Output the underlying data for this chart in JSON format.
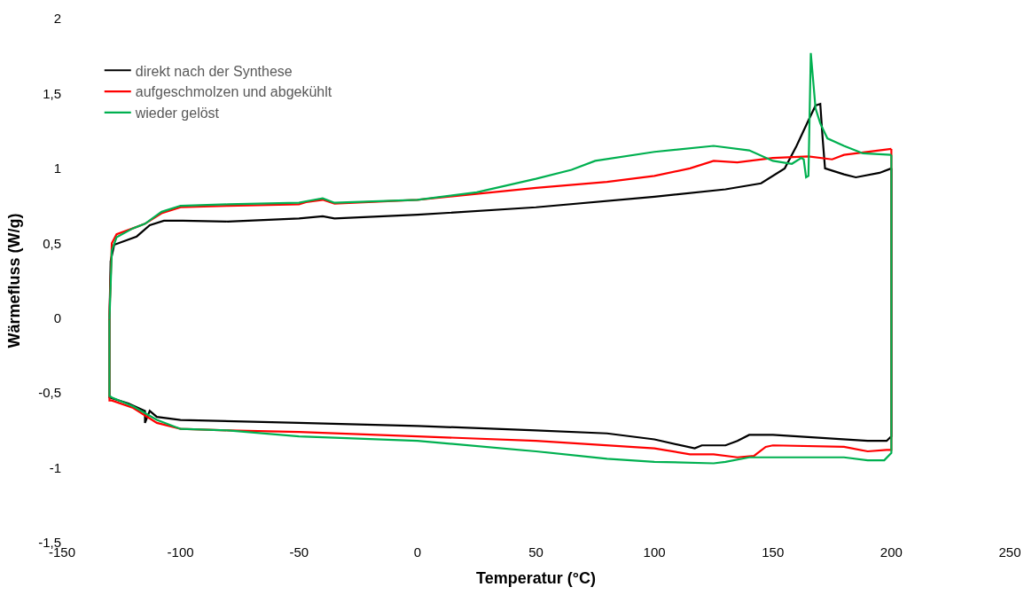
{
  "chart_data": {
    "type": "line",
    "xlabel": "Temperatur (°C)",
    "ylabel": "Wärmefluss (W/g)",
    "xlim": [
      -150,
      250
    ],
    "xticks": [
      -150,
      -100,
      -50,
      0,
      50,
      100,
      150,
      200,
      250
    ],
    "ylim": [
      -1.5,
      2
    ],
    "yticks": [
      {
        "value": -1.5,
        "label": "-1,5"
      },
      -1,
      {
        "value": -0.5,
        "label": "-0,5"
      },
      0,
      {
        "value": 0.5,
        "label": "0,5"
      },
      1,
      {
        "value": 1.5,
        "label": "1,5"
      },
      2
    ],
    "legend": "top left",
    "line_style": "solid",
    "marker": "none",
    "series": [
      {
        "name": "direkt nach der Synthese",
        "color": "#000000",
        "x": [
          -130,
          -129.5,
          -128,
          -118.5,
          -113,
          -107,
          -99,
          -80,
          -50,
          -40,
          -35,
          0,
          50,
          100,
          130,
          145,
          155,
          160,
          165,
          168,
          170,
          171,
          172,
          180,
          185,
          195,
          200,
          null,
          200,
          200,
          198,
          190,
          150,
          140,
          135,
          130,
          120,
          117,
          100,
          80,
          50,
          0,
          -50,
          -100,
          -110,
          -113,
          -115,
          -115,
          -122,
          -130,
          -130
        ],
        "values": [
          0,
          0.38,
          0.49,
          0.545,
          0.62,
          0.65,
          0.65,
          0.645,
          0.665,
          0.68,
          0.665,
          0.69,
          0.74,
          0.81,
          0.86,
          0.9,
          1.0,
          1.15,
          1.32,
          1.42,
          1.43,
          1.2,
          1.0,
          0.96,
          0.94,
          0.97,
          1.0,
          null,
          1.0,
          -0.79,
          -0.82,
          -0.82,
          -0.78,
          -0.78,
          -0.82,
          -0.85,
          -0.85,
          -0.87,
          -0.81,
          -0.77,
          -0.75,
          -0.72,
          -0.7,
          -0.68,
          -0.66,
          -0.62,
          -0.7,
          -0.62,
          -0.57,
          -0.53,
          0
        ]
      },
      {
        "name": "aufgeschmolzen und abgekühlt",
        "color": "#ff0000",
        "x": [
          -130,
          -129,
          -127,
          -120,
          -115,
          -108,
          -100,
          -80,
          -50,
          -47,
          -40,
          -35,
          0,
          50,
          80,
          100,
          115,
          125,
          135,
          150,
          165,
          175,
          180,
          200,
          null,
          200,
          200,
          198,
          190,
          180,
          150,
          147,
          142,
          135,
          125,
          115,
          100,
          50,
          0,
          -50,
          -80,
          -100,
          -110,
          -120,
          -129,
          -130,
          -130
        ],
        "values": [
          0.02,
          0.5,
          0.56,
          0.6,
          0.63,
          0.7,
          0.74,
          0.75,
          0.76,
          0.775,
          0.79,
          0.765,
          0.79,
          0.87,
          0.91,
          0.95,
          1.0,
          1.05,
          1.04,
          1.07,
          1.08,
          1.06,
          1.09,
          1.13,
          null,
          1.13,
          -0.88,
          -0.88,
          -0.89,
          -0.86,
          -0.85,
          -0.86,
          -0.92,
          -0.93,
          -0.91,
          -0.91,
          -0.87,
          -0.82,
          -0.79,
          -0.76,
          -0.75,
          -0.74,
          -0.7,
          -0.6,
          -0.55,
          -0.55,
          0.02
        ]
      },
      {
        "name": "wieder gelöst",
        "color": "#00b050",
        "x": [
          -130,
          -129,
          -127,
          -120,
          -115,
          -108,
          -100,
          -80,
          -50,
          -47,
          -40,
          -35,
          0,
          25,
          50,
          65,
          75,
          100,
          125,
          140,
          150,
          158,
          162,
          163,
          164,
          165,
          166,
          168,
          170,
          173,
          180,
          188,
          200,
          null,
          200,
          200,
          197,
          190,
          180,
          150,
          140,
          130,
          125,
          100,
          80,
          50,
          0,
          -50,
          -80,
          -100,
          -110,
          -120,
          -129,
          -130,
          -130
        ],
        "values": [
          -0.01,
          0.45,
          0.54,
          0.6,
          0.63,
          0.71,
          0.75,
          0.76,
          0.77,
          0.78,
          0.8,
          0.77,
          0.79,
          0.84,
          0.93,
          0.99,
          1.05,
          1.11,
          1.15,
          1.12,
          1.05,
          1.03,
          1.07,
          1.06,
          0.94,
          0.95,
          1.77,
          1.4,
          1.3,
          1.2,
          1.15,
          1.1,
          1.09,
          null,
          1.09,
          -0.9,
          -0.95,
          -0.95,
          -0.93,
          -0.93,
          -0.93,
          -0.96,
          -0.97,
          -0.96,
          -0.94,
          -0.89,
          -0.82,
          -0.79,
          -0.75,
          -0.74,
          -0.68,
          -0.59,
          -0.53,
          -0.52,
          -0.01
        ]
      }
    ]
  }
}
